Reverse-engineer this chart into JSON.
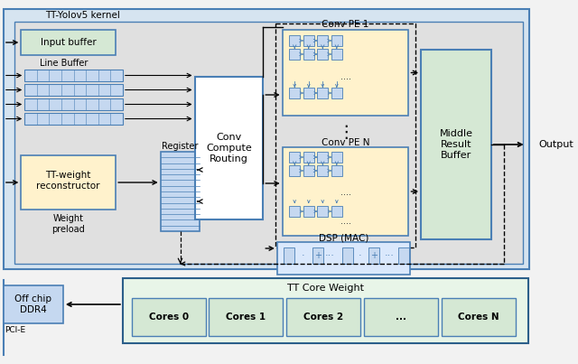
{
  "fig_w": 6.4,
  "fig_h": 4.03,
  "dpi": 100,
  "bg_fig": "#f2f2f2",
  "bg_outer_kernel": "#d6e4f0",
  "bg_inner_kernel": "#e0e0e0",
  "bg_bottom_section": "#dce9f5",
  "color_input_buffer": "#d5e8d4",
  "color_tt_weight": "#fff2cc",
  "color_register": "#c5d8f0",
  "color_conv_routing": "#ffffff",
  "color_pe_box": "#fff2cc",
  "color_pe_sq": "#c5d8f0",
  "color_middle_buf": "#d5e8d4",
  "color_dsp_box": "#dae8fc",
  "color_off_chip": "#c5d8f0",
  "color_core_weight_bg": "#e8f5e8",
  "color_core_cell": "#d5e8d4",
  "color_stroke": "#4a7fb5",
  "color_stroke_dark": "#2c5f8a",
  "color_arrow": "#000000",
  "color_pe_arrow": "#4a7fb5",
  "title_kernel": "TT-Yolov5 kernel",
  "title_tt_core": "TT Core Weight",
  "label_input_buffer": "Input buffer",
  "label_line_buffer": "Line Buffer",
  "label_tt_weight": "TT-weight\nreconstructor",
  "label_weight_preload": "Weight\npreload",
  "label_register": "Register",
  "label_conv_routing": "Conv\nCompute\nRouting",
  "label_conv_pe1": "Conv PE 1",
  "label_conv_pen": "Conv PE N",
  "label_dsp": "DSP (MAC)",
  "label_middle": "Middle\nResult\nBuffer",
  "label_output": "Output",
  "label_off_chip": "Off chip\nDDR4",
  "label_pcie": "PCI-E",
  "core_labels": [
    "Cores 0",
    "Cores 1",
    "Cores 2",
    "...",
    "Cores N"
  ]
}
